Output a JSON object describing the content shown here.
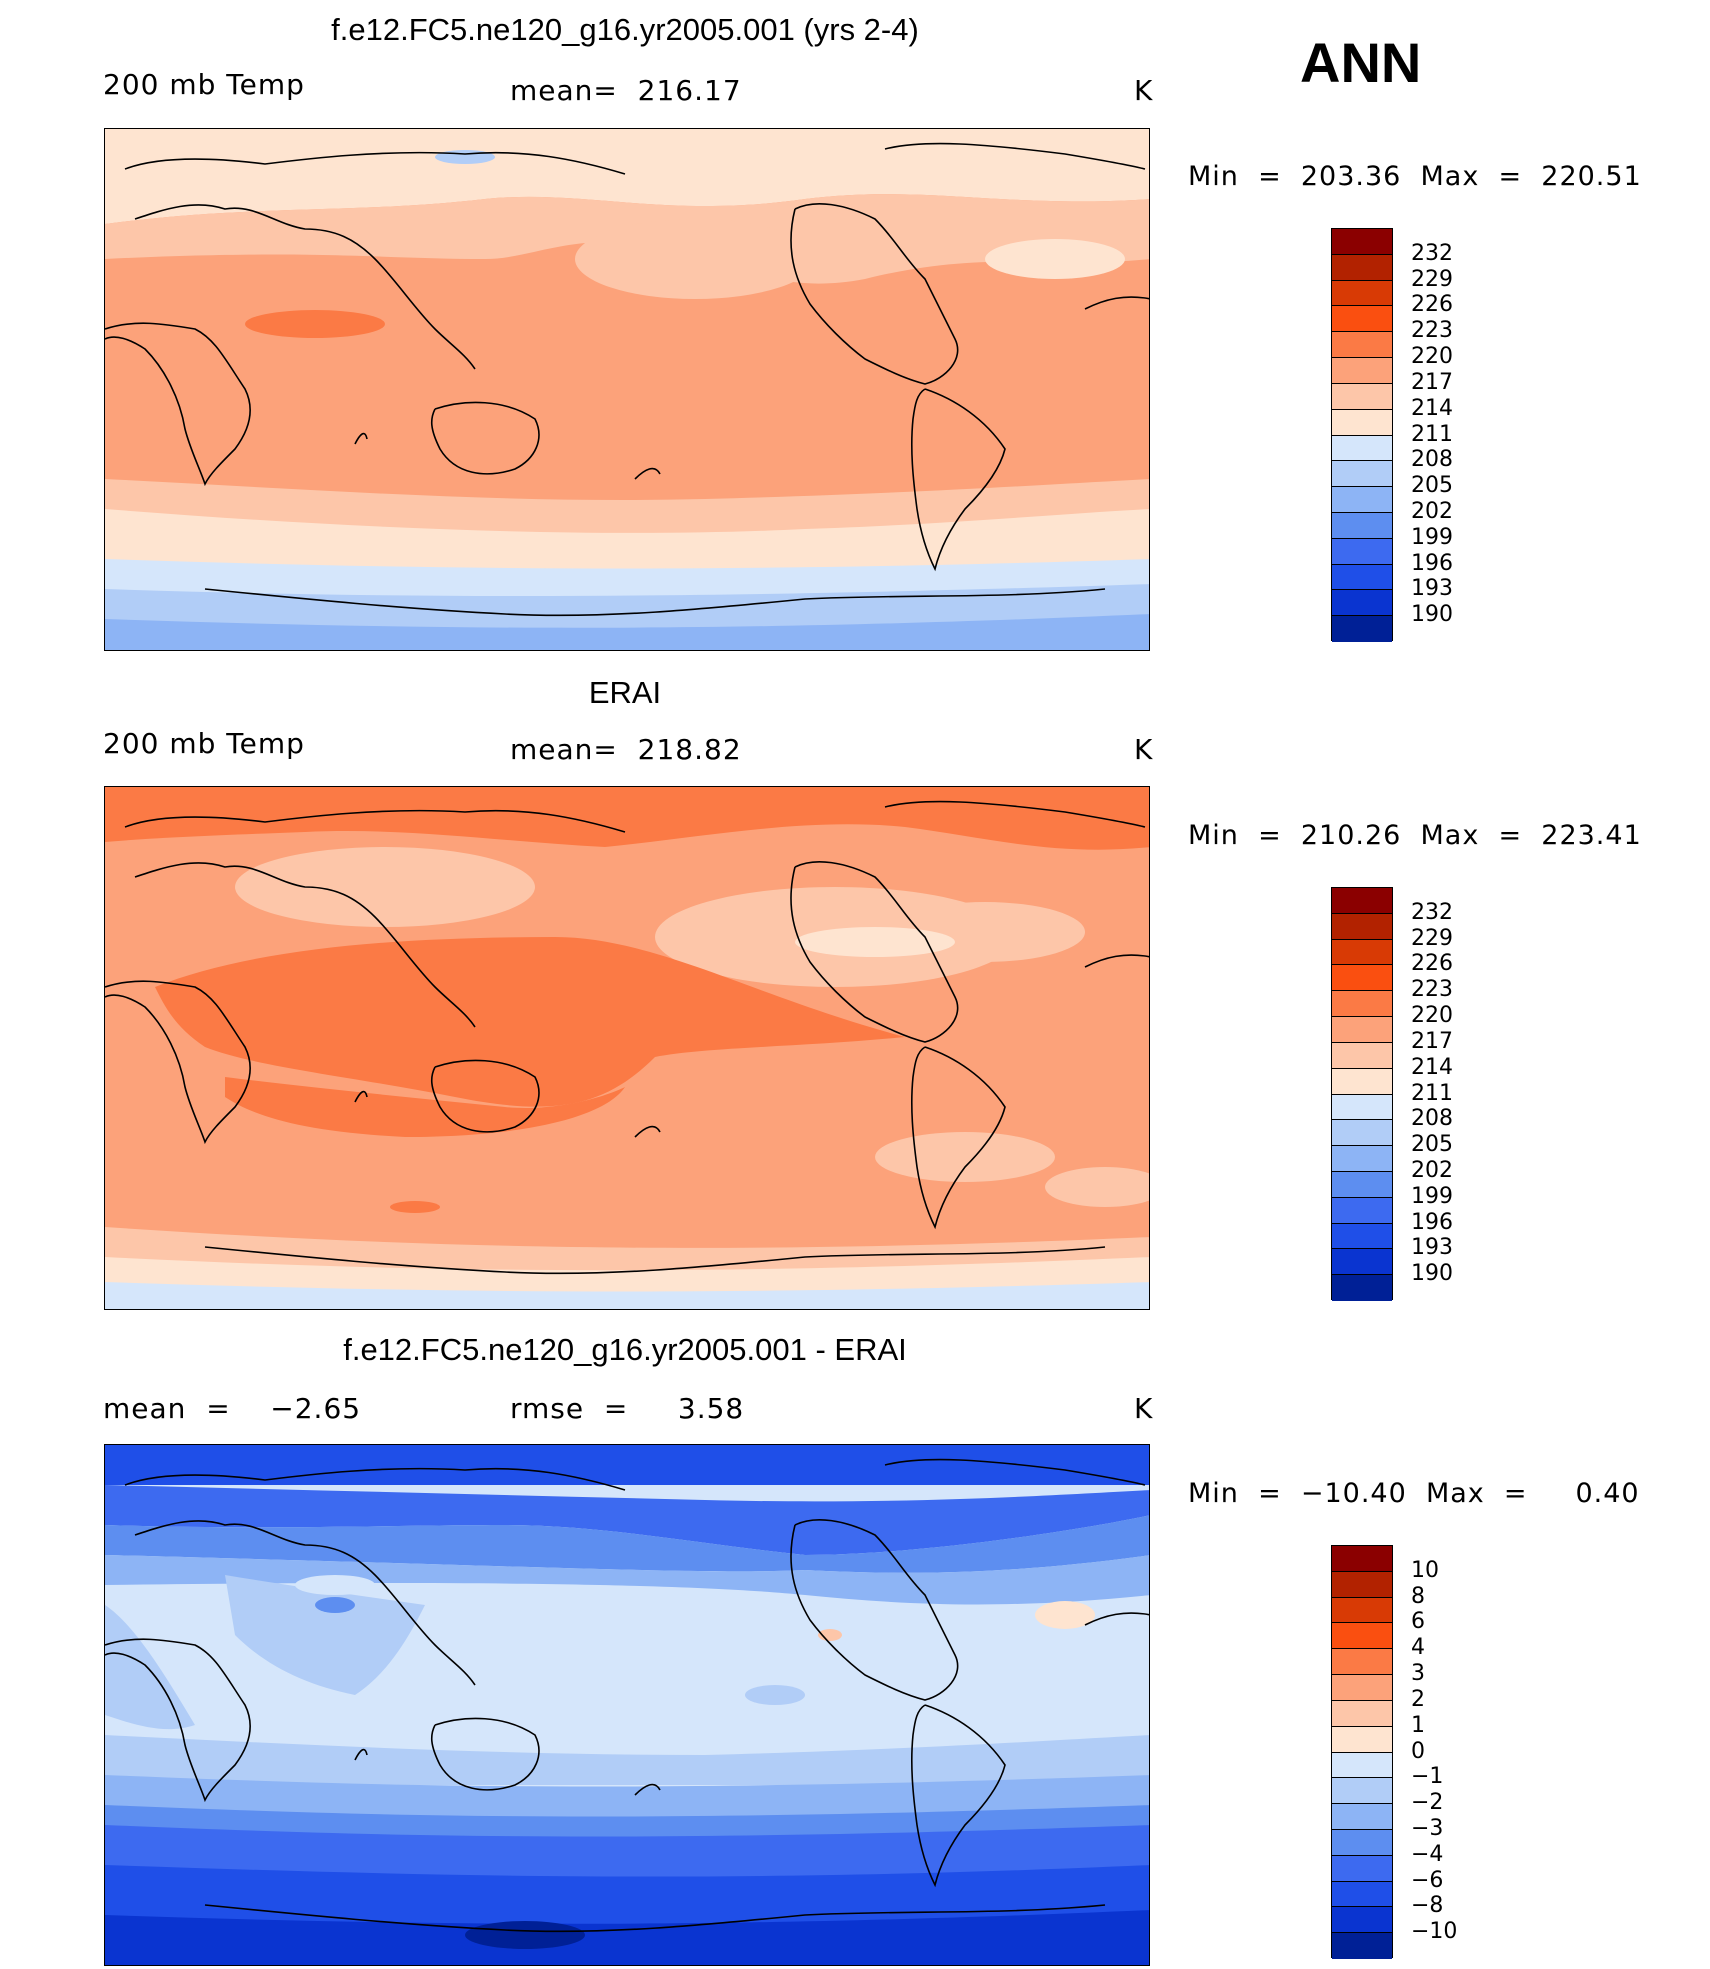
{
  "header": {
    "season": "ANN"
  },
  "panels": [
    {
      "title": "f.e12.FC5.ne120_g16.yr2005.001 (yrs 2-4)",
      "left_label": "200 mb Temp",
      "center_label": "mean=  216.17",
      "units": "K",
      "minmax": "Min  =  203.36  Max  =  220.51",
      "legend": {
        "labels": [
          "232",
          "229",
          "226",
          "223",
          "220",
          "217",
          "214",
          "211",
          "208",
          "205",
          "202",
          "199",
          "196",
          "193",
          "190"
        ],
        "colors": [
          "#8b0000",
          "#b22200",
          "#d83a05",
          "#fa4f10",
          "#fb7a45",
          "#fca27a",
          "#fdc6a9",
          "#fee4d0",
          "#d5e6fb",
          "#b1cdf7",
          "#8db4f5",
          "#5d8ef0",
          "#3d6af0",
          "#1f4fe8",
          "#0a34d0",
          "#002096"
        ]
      },
      "map_style": "model"
    },
    {
      "title": "ERAI",
      "left_label": "200 mb Temp",
      "center_label": "mean=  218.82",
      "units": "K",
      "minmax": "Min  =  210.26  Max  =  223.41",
      "legend": {
        "labels": [
          "232",
          "229",
          "226",
          "223",
          "220",
          "217",
          "214",
          "211",
          "208",
          "205",
          "202",
          "199",
          "196",
          "193",
          "190"
        ],
        "colors": [
          "#8b0000",
          "#b22200",
          "#d83a05",
          "#fa4f10",
          "#fb7a45",
          "#fca27a",
          "#fdc6a9",
          "#fee4d0",
          "#d5e6fb",
          "#b1cdf7",
          "#8db4f5",
          "#5d8ef0",
          "#3d6af0",
          "#1f4fe8",
          "#0a34d0",
          "#002096"
        ]
      },
      "map_style": "obs"
    },
    {
      "title": "f.e12.FC5.ne120_g16.yr2005.001 - ERAI",
      "left_label": "mean  =    −2.65",
      "center_label": "rmse  =     3.58",
      "units": "K",
      "minmax": "Min  =  −10.40  Max  =     0.40",
      "legend": {
        "labels": [
          "10",
          "8",
          "6",
          "4",
          "3",
          "2",
          "1",
          "0",
          "−1",
          "−2",
          "−3",
          "−4",
          "−6",
          "−8",
          "−10"
        ],
        "colors": [
          "#8b0000",
          "#b22200",
          "#d83a05",
          "#fa4f10",
          "#fb7a45",
          "#fca27a",
          "#fdc6a9",
          "#fee4d0",
          "#d5e6fb",
          "#b1cdf7",
          "#8db4f5",
          "#5d8ef0",
          "#3d6af0",
          "#1f4fe8",
          "#0a34d0",
          "#002096"
        ]
      },
      "map_style": "diff"
    }
  ]
}
